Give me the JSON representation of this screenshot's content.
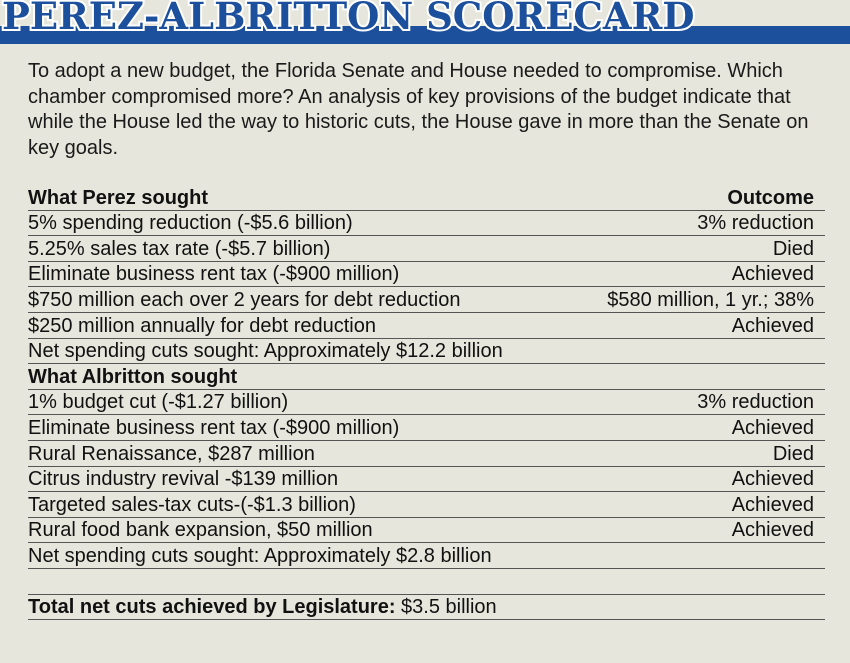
{
  "title": "PEREZ-ALBRITTON SCORECARD",
  "intro": "To adopt a new budget, the Florida Senate and House needed to compromise. Which chamber compromised more? An analysis of key provisions of the budget indicate that while the House led the way to historic cuts, the House gave in more than the Senate on key goals.",
  "header": {
    "left": "What Perez sought",
    "right": "Outcome"
  },
  "perez": [
    {
      "item": "5% spending reduction (-$5.6 billion)",
      "outcome": "3% reduction"
    },
    {
      "item": "5.25% sales tax rate (-$5.7 billion)",
      "outcome": "Died"
    },
    {
      "item": "Eliminate business rent tax (-$900 million)",
      "outcome": "Achieved"
    },
    {
      "item": "$750 million each over 2 years for debt reduction",
      "outcome": "$580 million, 1 yr.; 38%"
    },
    {
      "item": "$250 million annually for debt reduction",
      "outcome": "Achieved"
    }
  ],
  "perez_net": "Net spending cuts sought: Approximately $12.2 billion",
  "albritton_header": "What Albritton sought",
  "albritton": [
    {
      "item": "1% budget cut (-$1.27 billion)",
      "outcome": "3% reduction"
    },
    {
      "item": "Eliminate business rent tax (-$900 million)",
      "outcome": "Achieved"
    },
    {
      "item": "Rural Renaissance, $287 million",
      "outcome": "Died"
    },
    {
      "item": "Citrus industry revival -$139 million",
      "outcome": "Achieved"
    },
    {
      "item": "Targeted sales-tax cuts-(-$1.3 billion)",
      "outcome": "Achieved"
    },
    {
      "item": "Rural food bank expansion, $50 million",
      "outcome": "Achieved"
    }
  ],
  "albritton_net": "Net spending cuts sought: Approximately $2.8 billion",
  "total": {
    "label": "Total net cuts achieved by Legislature:",
    "value": " $3.5 billion"
  },
  "colors": {
    "banner_blue": "#1c4f9c",
    "background": "#e6e6dc"
  }
}
